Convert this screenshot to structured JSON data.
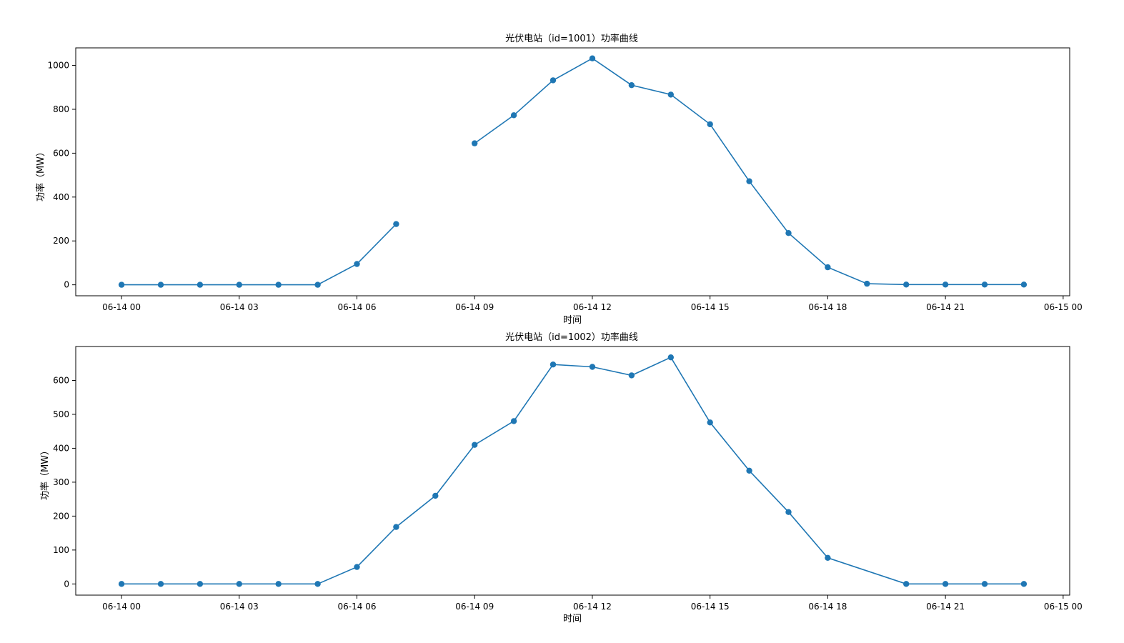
{
  "chart_data": [
    {
      "type": "line",
      "title": "光伏电站（id=1001）功率曲线",
      "xlabel": "时间",
      "ylabel": "功率（MW）",
      "x_ticks": [
        "06-14 00",
        "06-14 03",
        "06-14 06",
        "06-14 09",
        "06-14 12",
        "06-14 15",
        "06-14 18",
        "06-14 21",
        "06-15 00"
      ],
      "y_ticks": [
        0,
        200,
        400,
        600,
        800,
        1000
      ],
      "xlim": [
        "2024-06-13 22:50",
        "2024-06-15 00:10"
      ],
      "ylim": [
        -50,
        1080
      ],
      "grid": false,
      "color": "#1f77b4",
      "marker": "circle",
      "series": [
        {
          "x": [
            "00:00",
            "01:00",
            "02:00",
            "03:00",
            "04:00",
            "05:00",
            "06:00",
            "07:00",
            "08:00",
            "09:00",
            "10:00",
            "11:00",
            "12:00",
            "13:00",
            "14:00",
            "15:00",
            "16:00",
            "17:00",
            "18:00",
            "19:00",
            "20:00",
            "21:00",
            "22:00",
            "23:00"
          ],
          "values": [
            0,
            0,
            0,
            0,
            0,
            0,
            95,
            277,
            null,
            645,
            773,
            932,
            1032,
            910,
            867,
            732,
            472,
            236,
            80,
            5,
            1,
            1,
            1,
            1
          ]
        }
      ]
    },
    {
      "type": "line",
      "title": "光伏电站（id=1002）功率曲线",
      "xlabel": "时间",
      "ylabel": "功率（MW）",
      "x_ticks": [
        "06-14 00",
        "06-14 03",
        "06-14 06",
        "06-14 09",
        "06-14 12",
        "06-14 15",
        "06-14 18",
        "06-14 21",
        "06-15 00"
      ],
      "y_ticks": [
        0,
        100,
        200,
        300,
        400,
        500,
        600
      ],
      "xlim": [
        "2024-06-13 22:50",
        "2024-06-15 00:10"
      ],
      "ylim": [
        -33,
        700
      ],
      "grid": false,
      "color": "#1f77b4",
      "marker": "circle",
      "series": [
        {
          "x": [
            "00:00",
            "01:00",
            "02:00",
            "03:00",
            "04:00",
            "05:00",
            "06:00",
            "07:00",
            "08:00",
            "09:00",
            "10:00",
            "11:00",
            "12:00",
            "13:00",
            "14:00",
            "15:00",
            "16:00",
            "17:00",
            "18:00",
            "20:00",
            "21:00",
            "22:00",
            "23:00"
          ],
          "values": [
            0,
            0,
            0,
            0,
            0,
            0,
            50,
            168,
            260,
            410,
            480,
            647,
            640,
            615,
            668,
            476,
            334,
            212,
            77,
            0,
            0,
            0,
            0
          ]
        }
      ]
    }
  ]
}
